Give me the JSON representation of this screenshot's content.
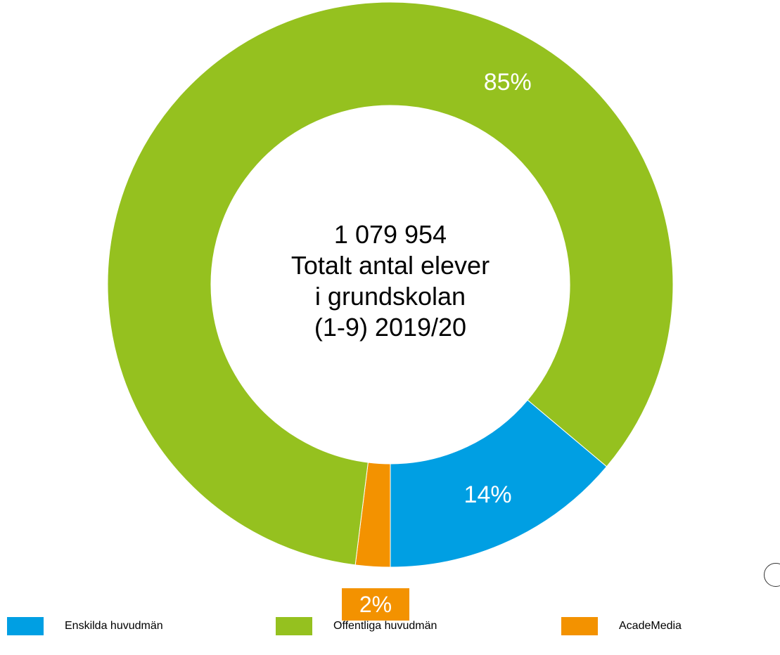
{
  "chart_data": {
    "type": "pie",
    "subtype": "donut",
    "center_label": [
      "1 079 954",
      "Totalt antal elever",
      "i grundskolan",
      "(1-9) 2019/20"
    ],
    "slices": [
      {
        "name": "AcadeMedia",
        "value": 2,
        "label": "2%",
        "color": "#f39200"
      },
      {
        "name": "Offentliga huvudmän",
        "value": 85,
        "label": "85%",
        "color": "#95c11f"
      },
      {
        "name": "Enskilda huvudmän",
        "value": 14,
        "label": "14%",
        "color": "#009fe3"
      }
    ],
    "legend": [
      {
        "label": "Enskilda huvudmän",
        "color": "#009fe3"
      },
      {
        "label": "Offentliga huvudmän",
        "color": "#95c11f"
      },
      {
        "label": "AcadeMedia",
        "color": "#f39200"
      }
    ],
    "legend_position": "bottom"
  }
}
